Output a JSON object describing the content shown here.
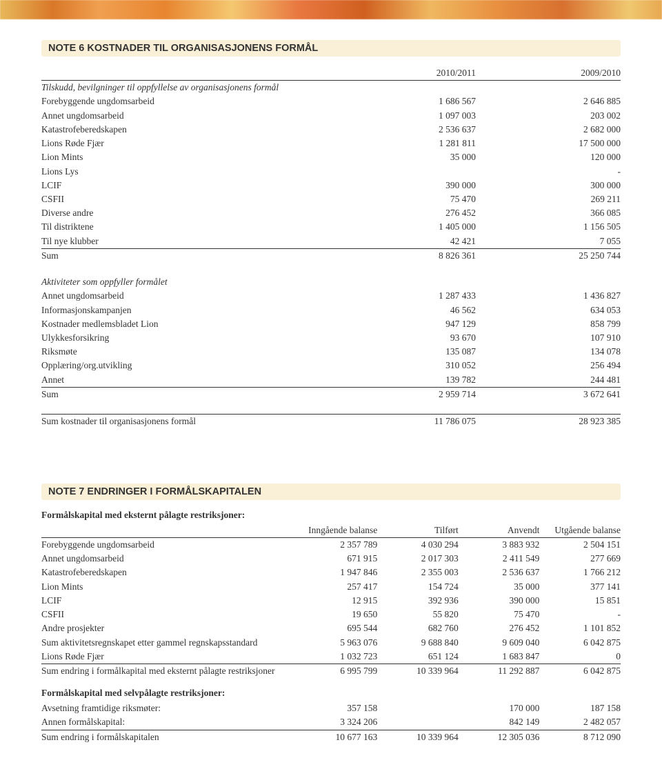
{
  "colors": {
    "heading_bg": "#faf0d8",
    "text": "#333333",
    "rule": "#333333",
    "page_bg": "#ffffff",
    "top_gradient": [
      "#e8b85a",
      "#d97828",
      "#f0a050",
      "#e88530",
      "#f5c870",
      "#e87840",
      "#d06020",
      "#f0b860",
      "#e89040",
      "#d87030",
      "#f0c870",
      "#e8a850"
    ]
  },
  "typography": {
    "body_font": "Georgia",
    "heading_font": "Arial",
    "body_size_pt": 10,
    "heading_size_pt": 11,
    "heading_weight": "bold"
  },
  "note6": {
    "title": "NOTE 6 KOSTNADER TIL ORGANISASJONENS FORMÅL",
    "col_headers": [
      "2010/2011",
      "2009/2010"
    ],
    "section1": {
      "caption": "Tilskudd, bevilgninger til oppfyllelse av organisasjonens formål",
      "rows": [
        {
          "label": "Forebyggende ungdomsarbeid",
          "v": [
            "1 686 567",
            "2 646 885"
          ]
        },
        {
          "label": "Annet ungdomsarbeid",
          "v": [
            "1 097 003",
            "203 002"
          ]
        },
        {
          "label": "Katastrofeberedskapen",
          "v": [
            "2 536 637",
            "2 682 000"
          ]
        },
        {
          "label": "Lions Røde Fjær",
          "v": [
            "1 281 811",
            "17 500 000"
          ]
        },
        {
          "label": "Lion Mints",
          "v": [
            "35 000",
            "120 000"
          ]
        },
        {
          "label": "Lions Lys",
          "v": [
            "",
            "-"
          ]
        },
        {
          "label": "LCIF",
          "v": [
            "390 000",
            "300 000"
          ]
        },
        {
          "label": "CSFII",
          "v": [
            "75 470",
            "269 211"
          ]
        },
        {
          "label": "Diverse andre",
          "v": [
            "276 452",
            "366 085"
          ]
        },
        {
          "label": "Til distriktene",
          "v": [
            "1 405 000",
            "1 156 505"
          ]
        },
        {
          "label": "Til nye klubber",
          "v": [
            "42 421",
            "7 055"
          ]
        }
      ],
      "sum": {
        "label": "Sum",
        "v": [
          "8 826 361",
          "25 250 744"
        ]
      }
    },
    "section2": {
      "caption": "Aktiviteter som oppfyller formålet",
      "rows": [
        {
          "label": "Annet ungdomsarbeid",
          "v": [
            "1 287 433",
            "1 436 827"
          ]
        },
        {
          "label": "Informasjonskampanjen",
          "v": [
            "46 562",
            "634 053"
          ]
        },
        {
          "label": "Kostnader medlemsbladet Lion",
          "v": [
            "947 129",
            "858 799"
          ]
        },
        {
          "label": "Ulykkesforsikring",
          "v": [
            "93 670",
            "107 910"
          ]
        },
        {
          "label": "Riksmøte",
          "v": [
            "135 087",
            "134 078"
          ]
        },
        {
          "label": "Opplæring/org.utvikling",
          "v": [
            "310 052",
            "256 494"
          ]
        },
        {
          "label": "Annet",
          "v": [
            "139 782",
            "244 481"
          ]
        }
      ],
      "sum": {
        "label": "Sum",
        "v": [
          "2 959 714",
          "3 672 641"
        ]
      }
    },
    "grand": {
      "label": "Sum kostnader til organisasjonens formål",
      "v": [
        "11 786 075",
        "28 923 385"
      ]
    }
  },
  "note7": {
    "title": "NOTE 7 ENDRINGER I FORMÅLSKAPITALEN",
    "section1": {
      "caption": "Formålskapital med eksternt pålagte restriksjoner:",
      "headers": [
        "Inngående balanse",
        "Tilført",
        "Anvendt",
        "Utgående balanse"
      ],
      "rows": [
        {
          "label": "Forebyggende ungdomsarbeid",
          "v": [
            "2 357 789",
            "4 030 294",
            "3 883 932",
            "2 504 151"
          ]
        },
        {
          "label": "Annet ungdomsarbeid",
          "v": [
            "671 915",
            "2 017 303",
            "2 411 549",
            "277 669"
          ]
        },
        {
          "label": "Katastrofeberedskapen",
          "v": [
            "1 947 846",
            "2 355 003",
            "2 536 637",
            "1 766 212"
          ]
        },
        {
          "label": "Lion Mints",
          "v": [
            "257 417",
            "154 724",
            "35 000",
            "377 141"
          ]
        },
        {
          "label": "LCIF",
          "v": [
            "12 915",
            "392 936",
            "390 000",
            "15 851"
          ]
        },
        {
          "label": "CSFII",
          "v": [
            "19 650",
            "55 820",
            "75 470",
            "-"
          ]
        },
        {
          "label": "Andre prosjekter",
          "v": [
            "695 544",
            "682 760",
            "276 452",
            "1 101 852"
          ]
        },
        {
          "label": "Sum aktivitetsregnskapet etter gammel regnskapsstandard",
          "v": [
            "5 963 076",
            "9 688 840",
            "9 609 040",
            "6 042 875"
          ]
        },
        {
          "label": "Lions Røde Fjær",
          "v": [
            "1 032 723",
            "651 124",
            "1 683 847",
            "0"
          ]
        }
      ],
      "sum": {
        "label": "Sum endring i formålkapital med eksternt pålagte restriksjoner",
        "v": [
          "6 995 799",
          "10 339 964",
          "11 292 887",
          "6 042 875"
        ]
      }
    },
    "section2": {
      "caption": "Formålskapital med selvpålagte restriksjoner:",
      "rows": [
        {
          "label": "Avsetning framtidige riksmøter:",
          "v": [
            "357 158",
            "",
            "170 000",
            "187 158"
          ]
        },
        {
          "label": "Annen formålskapital:",
          "v": [
            "3 324 206",
            "",
            "842 149",
            "2 482 057"
          ]
        }
      ],
      "sum": {
        "label": "Sum endring i formålskapitalen",
        "v": [
          "10 677 163",
          "10 339 964",
          "12 305 036",
          "8 712 090"
        ]
      }
    }
  }
}
